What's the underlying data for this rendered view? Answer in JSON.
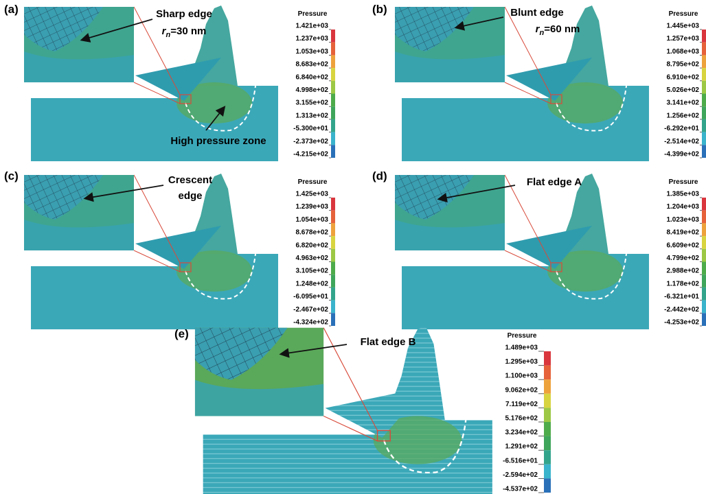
{
  "panels": [
    {
      "label": "(a)",
      "annotation": [
        "Sharp edge"
      ],
      "radius": {
        "symbol": "r",
        "subscript": "n",
        "value": "=30 nm"
      },
      "note": "High pressure zone",
      "colorbar": {
        "title": "Pressure",
        "ticks": [
          "1.421e+03",
          "1.237e+03",
          "1.053e+03",
          "8.683e+02",
          "6.840e+02",
          "4.998e+02",
          "3.155e+02",
          "1.313e+02",
          "-5.300e+01",
          "-2.373e+02",
          "-4.215e+02"
        ]
      }
    },
    {
      "label": "(b)",
      "annotation": [
        "Blunt edge"
      ],
      "radius": {
        "symbol": "r",
        "subscript": "n",
        "value": "=60 nm"
      },
      "colorbar": {
        "title": "Pressure",
        "ticks": [
          "1.445e+03",
          "1.257e+03",
          "1.068e+03",
          "8.795e+02",
          "6.910e+02",
          "5.026e+02",
          "3.141e+02",
          "1.256e+02",
          "-6.292e+01",
          "-2.514e+02",
          "-4.399e+02"
        ]
      }
    },
    {
      "label": "(c)",
      "annotation": [
        "Crescent",
        "edge"
      ],
      "colorbar": {
        "title": "Pressure",
        "ticks": [
          "1.425e+03",
          "1.239e+03",
          "1.054e+03",
          "8.678e+02",
          "6.820e+02",
          "4.963e+02",
          "3.105e+02",
          "1.248e+02",
          "-6.095e+01",
          "-2.467e+02",
          "-4.324e+02"
        ]
      }
    },
    {
      "label": "(d)",
      "annotation": [
        "Flat edge A"
      ],
      "colorbar": {
        "title": "Pressure",
        "ticks": [
          "1.385e+03",
          "1.204e+03",
          "1.023e+03",
          "8.419e+02",
          "6.609e+02",
          "4.799e+02",
          "2.988e+02",
          "1.178e+02",
          "-6.321e+01",
          "-2.442e+02",
          "-4.253e+02"
        ]
      }
    },
    {
      "label": "(e)",
      "annotation": [
        "Flat edge B"
      ],
      "colorbar": {
        "title": "Pressure",
        "ticks": [
          "1.489e+03",
          "1.295e+03",
          "1.100e+03",
          "9.062e+02",
          "7.119e+02",
          "5.176e+02",
          "3.234e+02",
          "1.291e+02",
          "-6.516e+01",
          "-2.594e+02",
          "-4.537e+02"
        ]
      }
    }
  ]
}
